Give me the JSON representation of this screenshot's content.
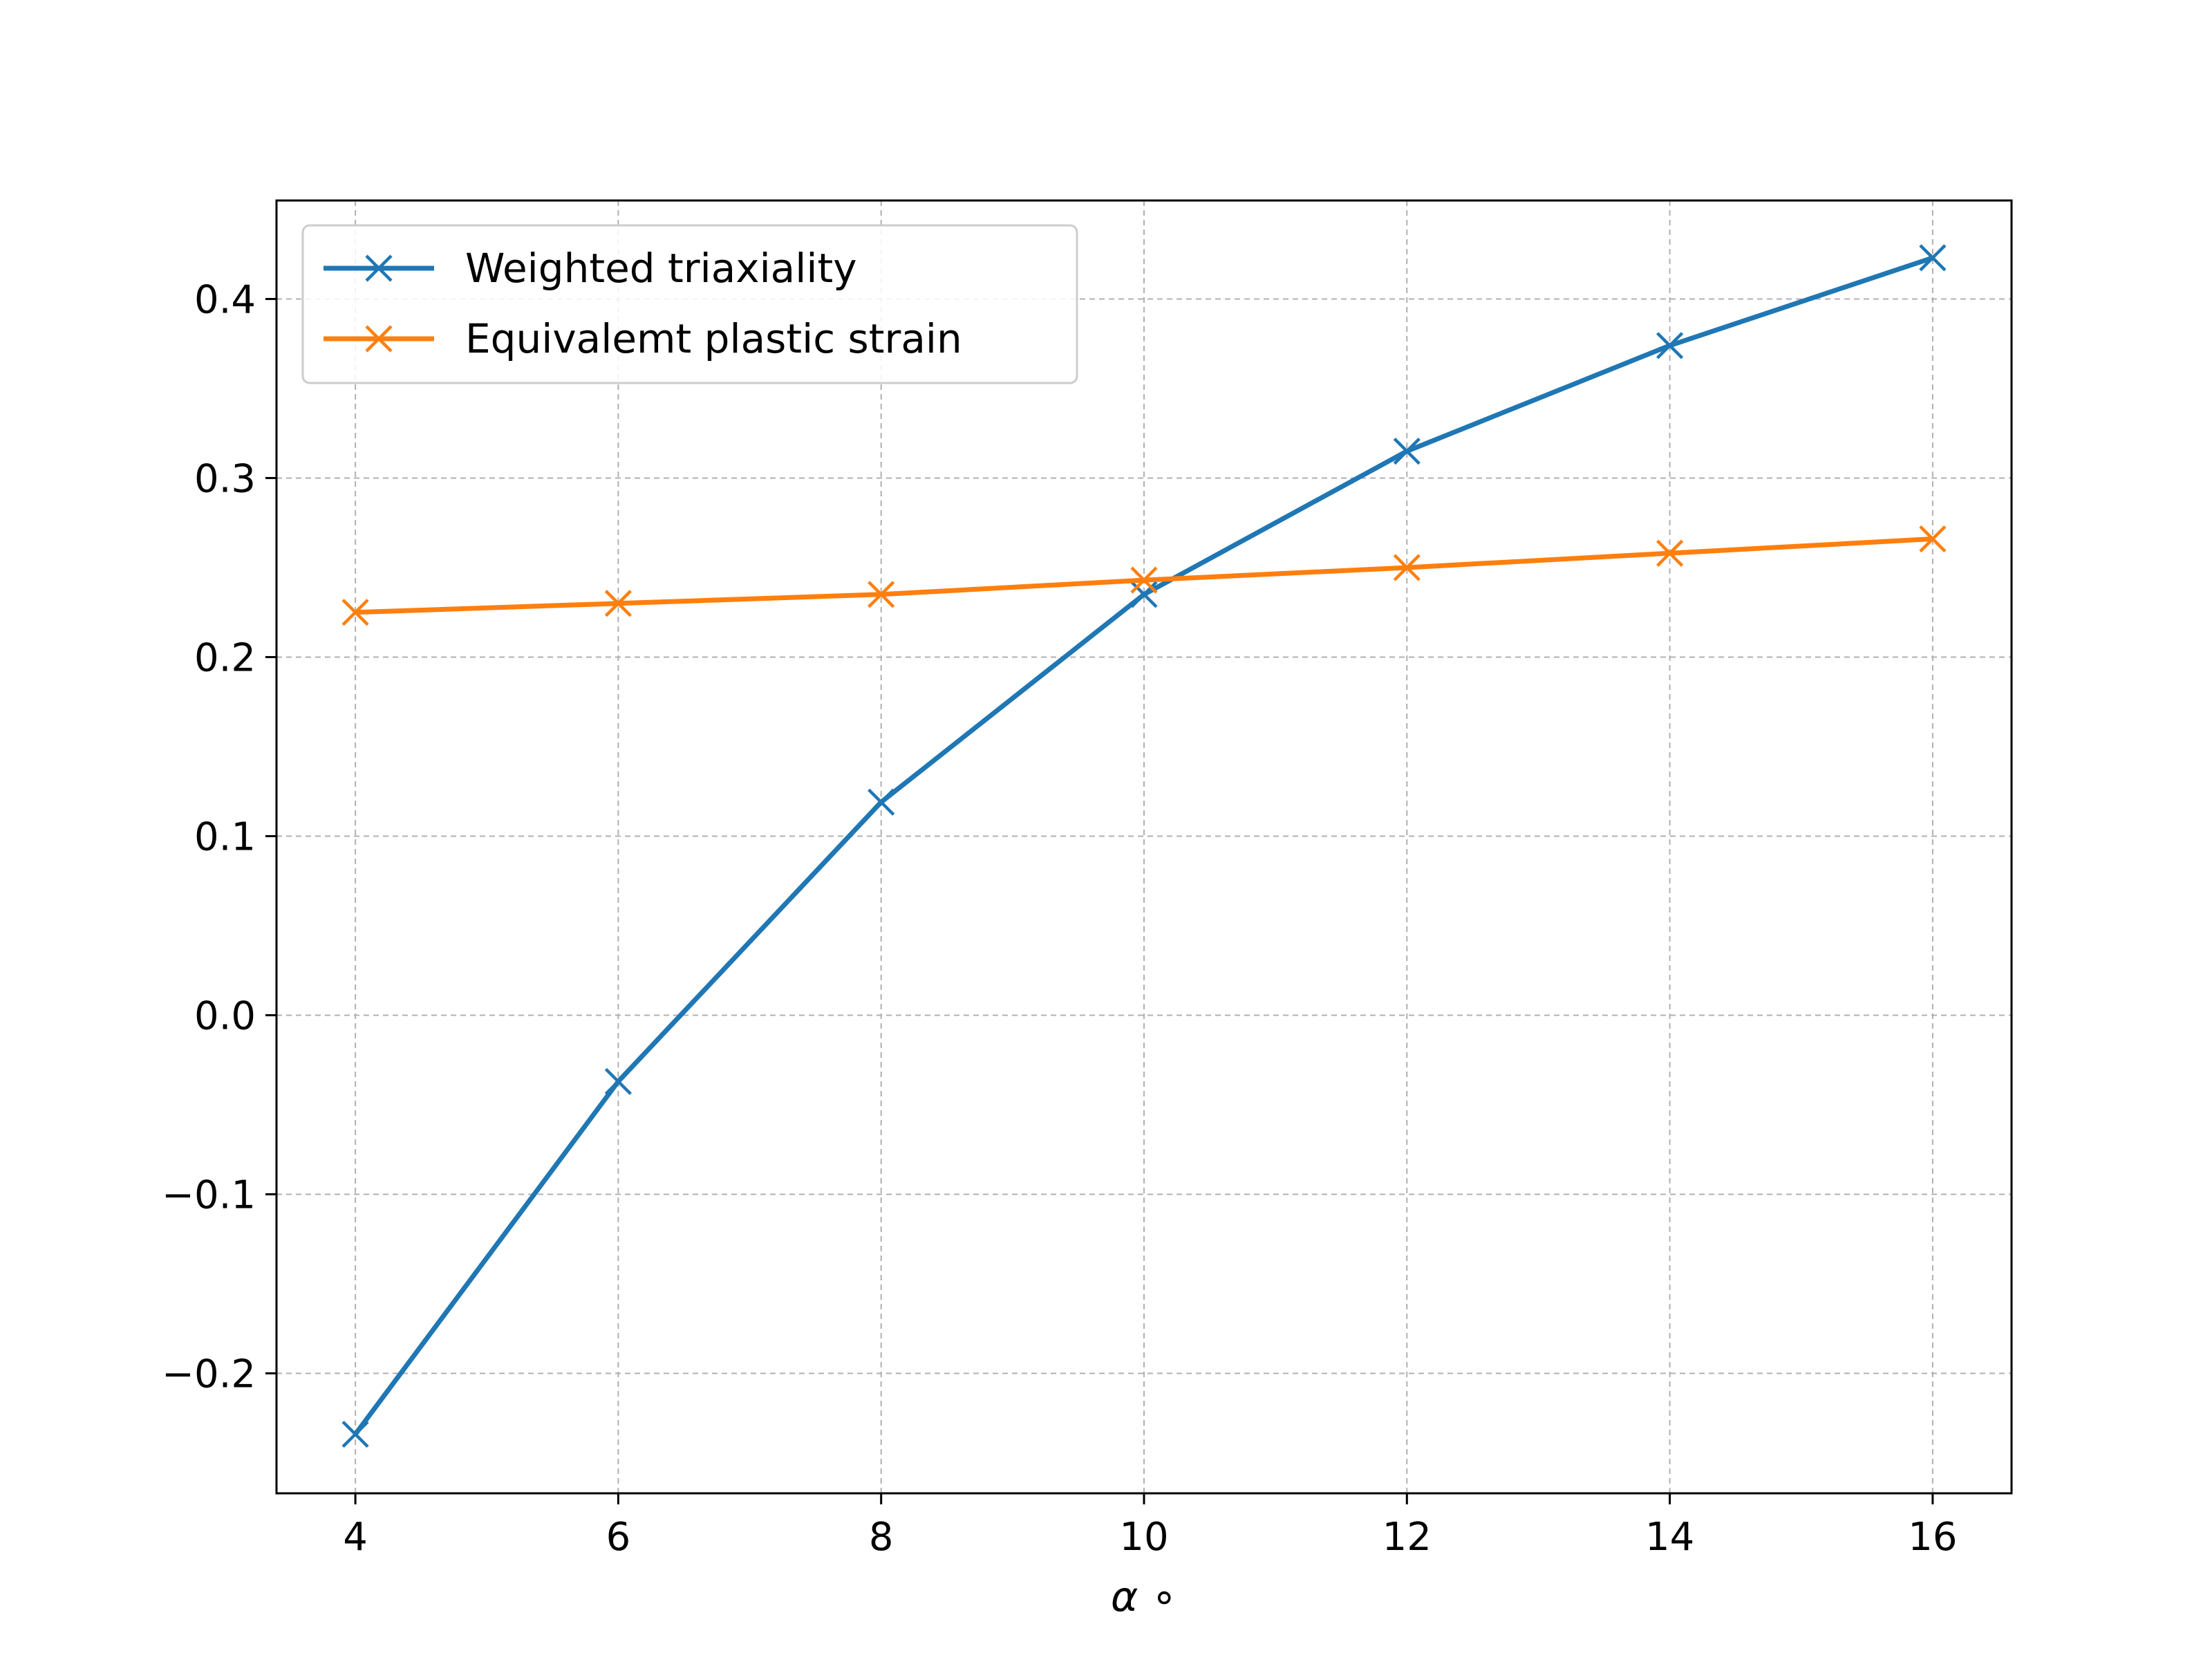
{
  "chart_data": {
    "type": "line",
    "title": "",
    "xlabel": "α ∘",
    "ylabel": "",
    "x": [
      4,
      6,
      8,
      10,
      12,
      14,
      16
    ],
    "xlim": [
      3.4,
      16.6
    ],
    "ylim": [
      -0.267,
      0.455
    ],
    "xticks": [
      4,
      6,
      8,
      10,
      12,
      14,
      16
    ],
    "xtick_labels": [
      "4",
      "6",
      "8",
      "10",
      "12",
      "14",
      "16"
    ],
    "yticks": [
      -0.2,
      -0.1,
      0.0,
      0.1,
      0.2,
      0.3,
      0.4
    ],
    "ytick_labels": [
      "−0.2",
      "−0.1",
      "0.0",
      "0.1",
      "0.2",
      "0.3",
      "0.4"
    ],
    "grid": true,
    "legend_position": "upper-left",
    "series": [
      {
        "name": "Weighted triaxiality",
        "color": "#1f77b4",
        "marker": "x",
        "values": [
          -0.234,
          -0.037,
          0.119,
          0.235,
          0.315,
          0.374,
          0.423
        ]
      },
      {
        "name": "Equivalemt plastic strain",
        "color": "#ff7f0e",
        "marker": "x",
        "values": [
          0.225,
          0.23,
          0.235,
          0.243,
          0.25,
          0.258,
          0.266
        ]
      }
    ]
  }
}
